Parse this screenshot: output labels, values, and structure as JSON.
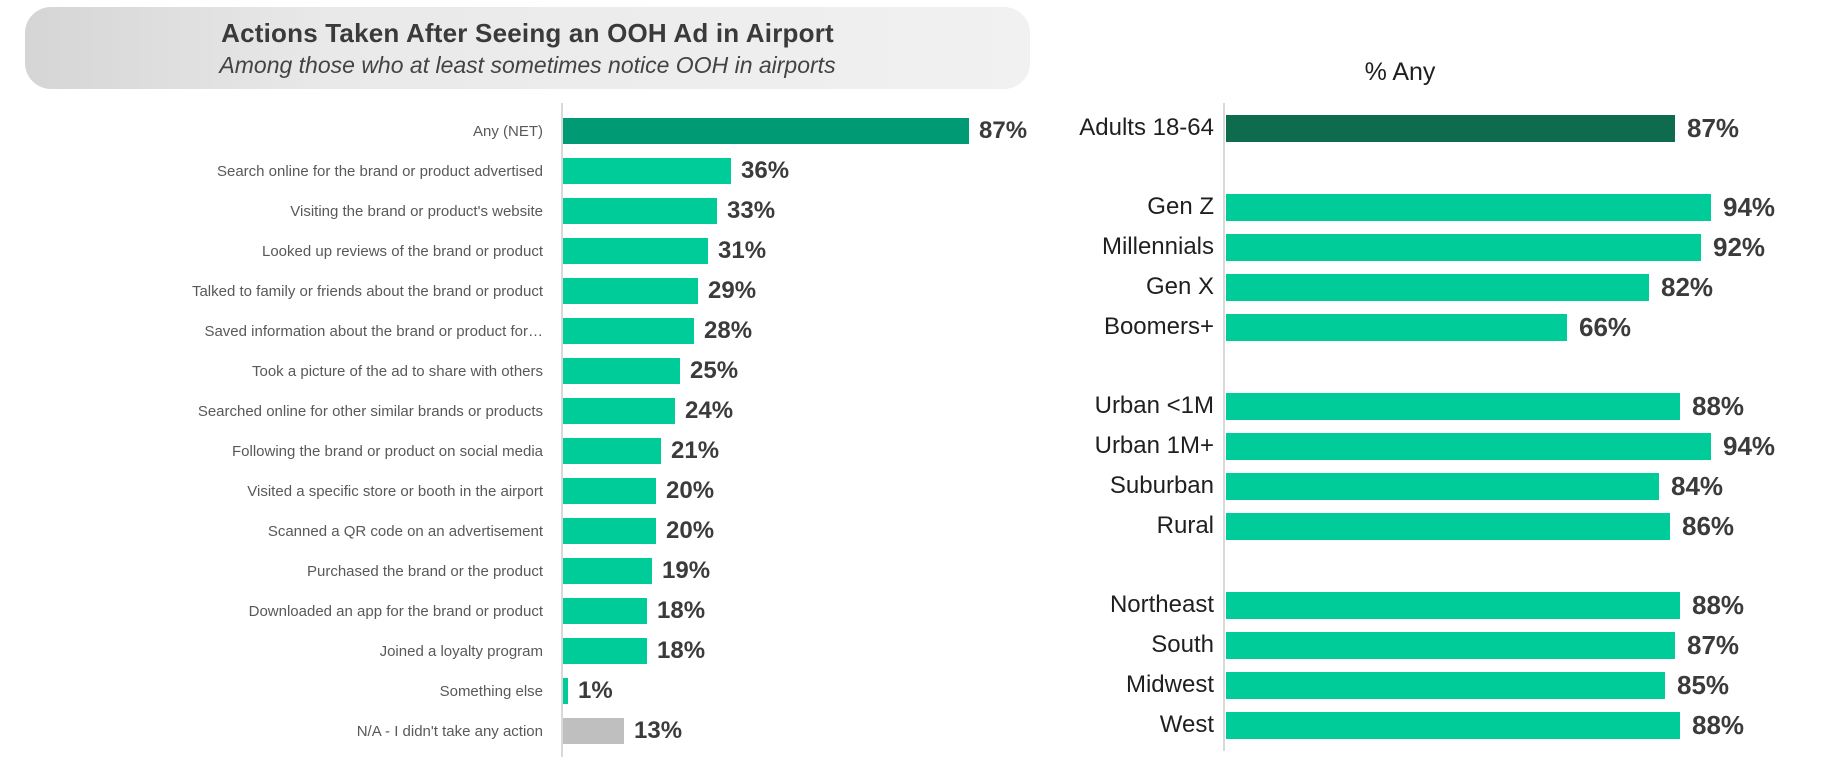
{
  "header": {
    "note": "header binds to chart_data.0 title/subtitle"
  },
  "palette": {
    "bright_green": "#00cc99",
    "dark_teal": "#009a74",
    "dark_forest_green": "#0e6b4d",
    "neutral_gray_bar": "#bfbfbf",
    "axis_gray": "#d9d9d9",
    "label_gray": "#595959",
    "value_dark_gray": "#3b3b3b"
  },
  "chart_data": [
    {
      "id": "actions-after-ooh-ad",
      "type": "bar",
      "orientation": "horizontal",
      "title": "Actions Taken After Seeing an OOH Ad in Airport",
      "subtitle": "Among those who at least sometimes notice OOH in airports",
      "value_suffix": "%",
      "xlim": [
        0,
        100
      ],
      "grid": false,
      "rows": [
        {
          "label": "Any (NET)",
          "value": 87,
          "color": "#009a74"
        },
        {
          "label": "Search online for the brand or product advertised",
          "value": 36,
          "color": "#00cc99"
        },
        {
          "label": "Visiting the brand or product's website",
          "value": 33,
          "color": "#00cc99"
        },
        {
          "label": "Looked up reviews of the brand or product",
          "value": 31,
          "color": "#00cc99"
        },
        {
          "label": "Talked to family or friends about the brand or product",
          "value": 29,
          "color": "#00cc99"
        },
        {
          "label": "Saved information about the brand or product for…",
          "value": 28,
          "color": "#00cc99"
        },
        {
          "label": "Took a picture of the ad to share with others",
          "value": 25,
          "color": "#00cc99"
        },
        {
          "label": "Searched online for other similar brands or products",
          "value": 24,
          "color": "#00cc99"
        },
        {
          "label": "Following the brand or product on social media",
          "value": 21,
          "color": "#00cc99"
        },
        {
          "label": "Visited a specific store or booth in the airport",
          "value": 20,
          "color": "#00cc99"
        },
        {
          "label": "Scanned a QR code on an advertisement",
          "value": 20,
          "color": "#00cc99"
        },
        {
          "label": "Purchased the brand or the product",
          "value": 19,
          "color": "#00cc99"
        },
        {
          "label": "Downloaded an app for the brand or product",
          "value": 18,
          "color": "#00cc99"
        },
        {
          "label": "Joined a loyalty program",
          "value": 18,
          "color": "#00cc99"
        },
        {
          "label": "Something else",
          "value": 1,
          "color": "#00cc99"
        },
        {
          "label": "N/A - I didn't take any action",
          "value": 13,
          "color": "#bfbfbf"
        }
      ]
    },
    {
      "id": "pct-any-by-demo",
      "type": "bar",
      "orientation": "horizontal",
      "title": "% Any",
      "value_suffix": "%",
      "xlim": [
        0,
        100
      ],
      "grid": false,
      "rows": [
        {
          "label": "Adults 18-64",
          "value": 87,
          "color": "#0e6b4d"
        },
        {
          "label": "Gen Z",
          "value": 94,
          "color": "#00cc99",
          "gap_before": true
        },
        {
          "label": "Millennials",
          "value": 92,
          "color": "#00cc99"
        },
        {
          "label": "Gen X",
          "value": 82,
          "color": "#00cc99"
        },
        {
          "label": "Boomers+",
          "value": 66,
          "color": "#00cc99"
        },
        {
          "label": "Urban <1M",
          "value": 88,
          "color": "#00cc99",
          "gap_before": true
        },
        {
          "label": "Urban 1M+",
          "value": 94,
          "color": "#00cc99"
        },
        {
          "label": "Suburban",
          "value": 84,
          "color": "#00cc99"
        },
        {
          "label": "Rural",
          "value": 86,
          "color": "#00cc99"
        },
        {
          "label": "Northeast",
          "value": 88,
          "color": "#00cc99",
          "gap_before": true
        },
        {
          "label": "South",
          "value": 87,
          "color": "#00cc99"
        },
        {
          "label": "Midwest",
          "value": 85,
          "color": "#00cc99"
        },
        {
          "label": "West",
          "value": 88,
          "color": "#00cc99"
        }
      ]
    }
  ]
}
